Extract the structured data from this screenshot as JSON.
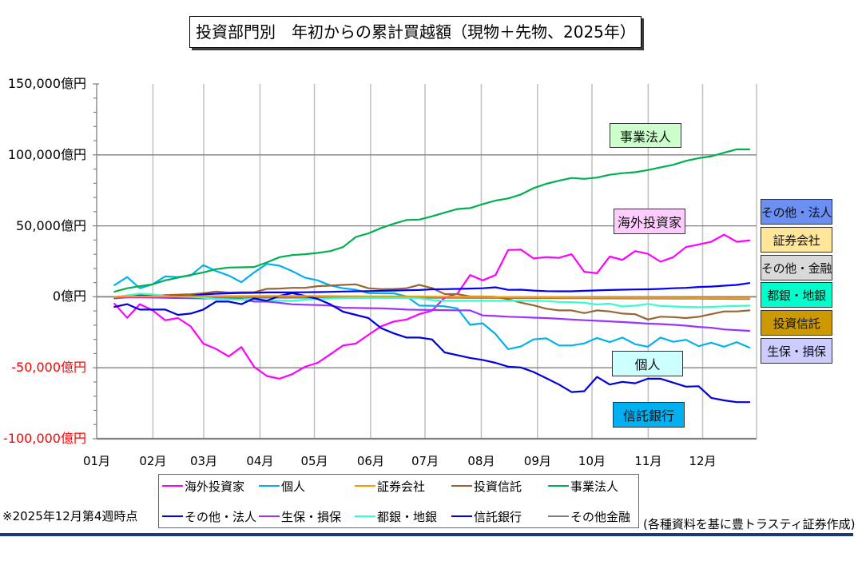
{
  "title": "投資部門別　年初からの累計買越額（現物＋先物、2025年）",
  "chart_data": {
    "type": "line",
    "title": "投資部門別　年初からの累計買越額（現物＋先物、2025年）",
    "xlabel": "",
    "ylabel": "",
    "x_unit": "week (weekly cumulative, 51 points)",
    "y_unit": "億円",
    "x_ticks": [
      "01月",
      "02月",
      "03月",
      "04月",
      "05月",
      "06月",
      "07月",
      "08月",
      "09月",
      "10月",
      "11月",
      "12月"
    ],
    "ylim": [
      -100000,
      150000
    ],
    "minor_unit": 10000,
    "y_ticks": [
      {
        "value": 150000,
        "label": "150,000億円"
      },
      {
        "value": 100000,
        "label": "100,000億円"
      },
      {
        "value": 50000,
        "label": "50,000億円"
      },
      {
        "value": 0,
        "label": "0億円"
      },
      {
        "value": -50000,
        "label": "-50,000億円"
      },
      {
        "value": -100000,
        "label": "-100,000億円"
      }
    ],
    "negative_label_color": "#ff0000",
    "grid": {
      "horizontal": true,
      "vertical": true
    },
    "legend": {
      "placement": "bottom"
    },
    "series": [
      {
        "name": "海外投資家",
        "color": "#ff00ff",
        "values": [
          -4900,
          -14800,
          -5200,
          -9500,
          -16500,
          -15000,
          -20800,
          -33000,
          -36700,
          -42000,
          -35400,
          -49300,
          -55800,
          -57700,
          -54500,
          -49300,
          -46500,
          -40500,
          -34300,
          -33000,
          -26800,
          -20800,
          -17400,
          -16000,
          -12200,
          -9800,
          -500,
          2200,
          15300,
          11600,
          15300,
          33000,
          33300,
          27000,
          28000,
          27500,
          30000,
          17600,
          16600,
          28400,
          26000,
          32200,
          30300,
          24700,
          27900,
          35000,
          36900,
          38800,
          43800,
          38800,
          39700
        ]
      },
      {
        "name": "個人",
        "color": "#00b0f0",
        "values": [
          8200,
          13900,
          6000,
          8800,
          14400,
          13900,
          15000,
          22300,
          18200,
          15000,
          10300,
          17200,
          23200,
          21900,
          18100,
          13500,
          11600,
          8000,
          6000,
          5000,
          2600,
          2500,
          2400,
          300,
          -6200,
          -6300,
          -6700,
          -8200,
          -19700,
          -18700,
          -26200,
          -36900,
          -35000,
          -30000,
          -29200,
          -34300,
          -34300,
          -32800,
          -29000,
          -31900,
          -28700,
          -33400,
          -35200,
          -28700,
          -31700,
          -30300,
          -34800,
          -32300,
          -35200,
          -31900,
          -35800
        ]
      },
      {
        "name": "証券会社",
        "color": "#ff9900",
        "values": [
          0,
          200,
          300,
          300,
          300,
          300,
          400,
          400,
          500,
          500,
          500,
          600,
          600,
          600,
          600,
          600,
          500,
          500,
          400,
          400,
          300,
          300,
          300,
          200,
          200,
          100,
          0,
          0,
          0,
          0,
          -100,
          -100,
          -200,
          -200,
          -300,
          -300,
          -400,
          -400,
          -500,
          -500,
          -500,
          -600,
          -600,
          -700,
          -700,
          -800,
          -800,
          -900,
          -900,
          -1000,
          -1000
        ]
      },
      {
        "name": "投資信託",
        "color": "#996633",
        "values": [
          -1100,
          -400,
          300,
          800,
          1200,
          1500,
          1800,
          2500,
          3700,
          3000,
          3200,
          3200,
          5600,
          5800,
          6300,
          6300,
          7500,
          7900,
          8400,
          8800,
          6000,
          5400,
          5500,
          6000,
          8400,
          6200,
          1900,
          1900,
          200,
          200,
          0,
          -1700,
          -4100,
          -6000,
          -8400,
          -9600,
          -9600,
          -11500,
          -9600,
          -10300,
          -11800,
          -12300,
          -16000,
          -14000,
          -14300,
          -15000,
          -14100,
          -12200,
          -10300,
          -10300,
          -9600
        ]
      },
      {
        "name": "事業法人",
        "color": "#00b050",
        "values": [
          3600,
          6000,
          7500,
          8800,
          11600,
          13500,
          15400,
          17200,
          19500,
          20600,
          20800,
          21000,
          24200,
          27900,
          29400,
          30000,
          30900,
          32200,
          35000,
          42100,
          44700,
          48500,
          51500,
          54100,
          54400,
          56700,
          59300,
          61800,
          62500,
          65300,
          67800,
          69300,
          72100,
          76600,
          79600,
          81800,
          83700,
          83100,
          84000,
          86000,
          87100,
          87800,
          89300,
          91200,
          93000,
          95800,
          97700,
          99000,
          101500,
          103900,
          103900
        ]
      },
      {
        "name": "その他・法人",
        "color": "#0000ff",
        "values": [
          -500,
          0,
          1000,
          1000,
          800,
          600,
          700,
          1700,
          2200,
          2500,
          2700,
          2800,
          3100,
          3100,
          3100,
          3200,
          3300,
          3500,
          3700,
          3900,
          4000,
          4200,
          4400,
          4600,
          4800,
          5300,
          5400,
          5600,
          5800,
          6000,
          6700,
          4900,
          5000,
          4400,
          4000,
          3900,
          3900,
          4200,
          4500,
          4800,
          5000,
          5200,
          5300,
          5600,
          6000,
          6300,
          6900,
          7200,
          7800,
          8400,
          9700
        ]
      },
      {
        "name": "生保・損保",
        "color": "#9933ff",
        "values": [
          -600,
          -400,
          -300,
          -500,
          -700,
          -900,
          -1000,
          -1100,
          -1300,
          -1500,
          -1700,
          -3400,
          -3400,
          -4200,
          -5300,
          -5600,
          -5800,
          -6200,
          -7700,
          -7800,
          -8000,
          -8100,
          -8500,
          -9000,
          -9200,
          -9300,
          -9400,
          -9500,
          -9600,
          -13100,
          -13500,
          -14000,
          -14300,
          -14700,
          -15000,
          -15500,
          -16000,
          -16500,
          -16900,
          -17300,
          -17800,
          -18300,
          -18900,
          -19200,
          -19700,
          -20300,
          -21200,
          -21800,
          -23000,
          -23500,
          -24000
        ]
      },
      {
        "name": "都銀・地銀",
        "color": "#33ffcc",
        "values": [
          -200,
          1000,
          2200,
          1700,
          700,
          200,
          0,
          -600,
          -1500,
          -1800,
          -2000,
          -2100,
          -2400,
          -2600,
          -2800,
          -2000,
          -1500,
          -1200,
          -1000,
          -800,
          -600,
          -700,
          -800,
          -900,
          -1000,
          -2300,
          -2800,
          -2800,
          -2800,
          -2800,
          -2800,
          -2800,
          -2800,
          -2800,
          -3000,
          -3600,
          -3800,
          -4200,
          -5400,
          -4800,
          -6800,
          -6200,
          -5000,
          -6500,
          -6800,
          -7100,
          -7300,
          -7100,
          -6700,
          -6500,
          -6200
        ]
      },
      {
        "name": "信託銀行",
        "color": "#0000dd",
        "values": [
          -7100,
          -5200,
          -9000,
          -9000,
          -9000,
          -12700,
          -11800,
          -9000,
          -3400,
          -3400,
          -5200,
          -1100,
          -2800,
          700,
          2600,
          700,
          -1500,
          -5300,
          -10500,
          -12700,
          -15000,
          -22100,
          -25800,
          -28700,
          -28700,
          -30000,
          -39200,
          -41100,
          -43100,
          -44500,
          -46500,
          -49200,
          -49800,
          -53000,
          -57300,
          -61800,
          -67100,
          -66500,
          -56400,
          -61800,
          -59900,
          -60900,
          -57700,
          -57700,
          -60500,
          -63300,
          -63000,
          -71200,
          -73000,
          -74200,
          -74200
        ]
      },
      {
        "name": "その他金融",
        "color": "#808080",
        "values": [
          -300,
          -300,
          -400,
          -400,
          -400,
          -500,
          -500,
          -500,
          -500,
          -600,
          -600,
          -600,
          -600,
          -600,
          -600,
          -600,
          -600,
          -600,
          -700,
          -700,
          -700,
          -700,
          -700,
          -700,
          -700,
          -700,
          -700,
          -700,
          -800,
          -800,
          -800,
          -800,
          -900,
          -900,
          -900,
          -1000,
          -1000,
          -1000,
          -1100,
          -1100,
          -1100,
          -1200,
          -1200,
          -1200,
          -1300,
          -1300,
          -1300,
          -1400,
          -1400,
          -1500,
          -1500
        ]
      }
    ],
    "annotations": [
      {
        "text": "事業法人",
        "bg": "#ccffcc"
      },
      {
        "text": "海外投資家",
        "bg": "#ffccff"
      },
      {
        "text": "個人",
        "bg": "#ccffff"
      },
      {
        "text": "信託銀行",
        "bg": "#00b0f0"
      }
    ],
    "side_labels": [
      {
        "text": "その他・法人",
        "bg": "#6b8ff2"
      },
      {
        "text": "証券会社",
        "bg": "#ffe699"
      },
      {
        "text": "その他・金融",
        "bg": "#d9d9d9"
      },
      {
        "text": "都銀・地銀",
        "bg": "#00ffcc"
      },
      {
        "text": "投資信託",
        "bg": "#cc9900"
      },
      {
        "text": "生保・損保",
        "bg": "#ccccff"
      }
    ]
  },
  "footnote_left": "※2025年12月第4週時点",
  "footnote_right": "(各種資料を基に豊トラスティ証券作成)"
}
